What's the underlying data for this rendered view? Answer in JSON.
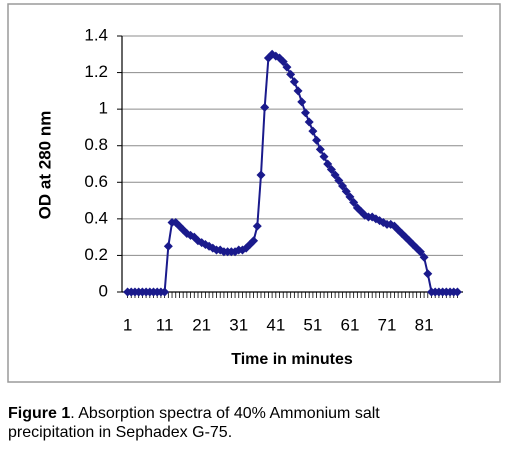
{
  "chart_data": {
    "type": "line",
    "ylabel": "OD at 280 nm",
    "xlabel": "Time in minutes",
    "x": [
      1,
      2,
      3,
      4,
      5,
      6,
      7,
      8,
      9,
      10,
      11,
      12,
      13,
      14,
      15,
      16,
      17,
      18,
      19,
      20,
      21,
      22,
      23,
      24,
      25,
      26,
      27,
      28,
      29,
      30,
      31,
      32,
      33,
      34,
      35,
      36,
      37,
      38,
      39,
      40,
      41,
      42,
      43,
      44,
      45,
      46,
      47,
      48,
      49,
      50,
      51,
      52,
      53,
      54,
      55,
      56,
      57,
      58,
      59,
      60,
      61,
      62,
      63,
      64,
      65,
      66,
      67,
      68,
      69,
      70,
      71,
      72,
      73,
      74,
      75,
      76,
      77,
      78,
      79,
      80,
      81,
      82,
      83,
      84,
      85,
      86,
      87,
      88,
      89,
      90
    ],
    "series": [
      {
        "color": "#1a1a8c",
        "values": [
          0,
          0,
          0,
          0,
          0,
          0,
          0,
          0,
          0,
          0,
          0,
          0.25,
          0.38,
          0.38,
          0.36,
          0.34,
          0.32,
          0.31,
          0.3,
          0.28,
          0.27,
          0.26,
          0.25,
          0.24,
          0.23,
          0.23,
          0.22,
          0.22,
          0.22,
          0.22,
          0.23,
          0.23,
          0.24,
          0.26,
          0.28,
          0.36,
          0.64,
          1.01,
          1.28,
          1.3,
          1.29,
          1.28,
          1.26,
          1.23,
          1.19,
          1.15,
          1.1,
          1.04,
          0.98,
          0.93,
          0.88,
          0.83,
          0.78,
          0.74,
          0.7,
          0.67,
          0.64,
          0.61,
          0.58,
          0.55,
          0.52,
          0.49,
          0.46,
          0.44,
          0.42,
          0.41,
          0.41,
          0.4,
          0.39,
          0.38,
          0.37,
          0.37,
          0.36,
          0.34,
          0.32,
          0.3,
          0.28,
          0.26,
          0.24,
          0.22,
          0.19,
          0.1,
          0,
          0,
          0,
          0,
          0,
          0,
          0,
          0
        ]
      }
    ],
    "xlim": [
      -0.5,
      91.5
    ],
    "xticks": [
      1,
      11,
      21,
      31,
      41,
      51,
      61,
      71,
      81
    ],
    "ylim": [
      0,
      1.4
    ],
    "yticks": [
      0,
      0.2,
      0.4,
      0.6,
      0.8,
      1,
      1.2,
      1.4
    ],
    "grid": true
  },
  "caption": {
    "label": "Figure 1",
    "text": ". Absorption spectra of 40% Ammonium salt precipitation in Sephadex G-75."
  }
}
